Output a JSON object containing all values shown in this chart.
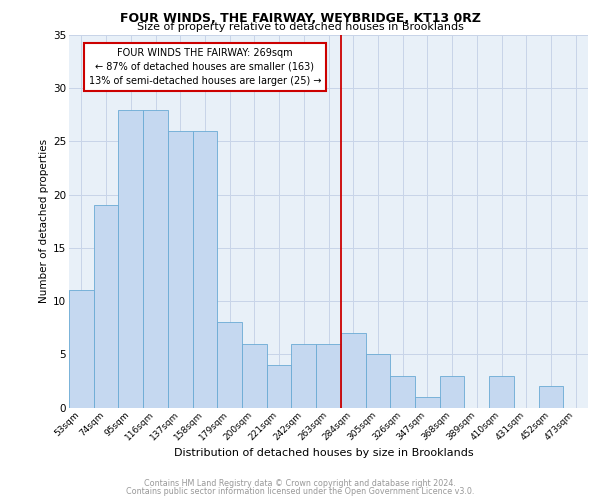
{
  "title": "FOUR WINDS, THE FAIRWAY, WEYBRIDGE, KT13 0RZ",
  "subtitle": "Size of property relative to detached houses in Brooklands",
  "xlabel": "Distribution of detached houses by size in Brooklands",
  "ylabel": "Number of detached properties",
  "categories": [
    "53sqm",
    "74sqm",
    "95sqm",
    "116sqm",
    "137sqm",
    "158sqm",
    "179sqm",
    "200sqm",
    "221sqm",
    "242sqm",
    "263sqm",
    "284sqm",
    "305sqm",
    "326sqm",
    "347sqm",
    "368sqm",
    "389sqm",
    "410sqm",
    "431sqm",
    "452sqm",
    "473sqm"
  ],
  "values": [
    11,
    19,
    28,
    28,
    26,
    26,
    8,
    6,
    4,
    6,
    6,
    7,
    5,
    3,
    1,
    3,
    0,
    3,
    0,
    2,
    0
  ],
  "bar_color": "#c5d8f0",
  "bar_edge_color": "#6aaad4",
  "grid_color": "#c8d4e8",
  "background_color": "#e8f0f8",
  "vline_x": 10.5,
  "vline_color": "#cc0000",
  "annotation_box_text": "FOUR WINDS THE FAIRWAY: 269sqm\n← 87% of detached houses are smaller (163)\n13% of semi-detached houses are larger (25) →",
  "annotation_box_color": "#cc0000",
  "ylim": [
    0,
    35
  ],
  "yticks": [
    0,
    5,
    10,
    15,
    20,
    25,
    30,
    35
  ],
  "footer_line1": "Contains HM Land Registry data © Crown copyright and database right 2024.",
  "footer_line2": "Contains public sector information licensed under the Open Government Licence v3.0.",
  "footer_color": "#999999"
}
